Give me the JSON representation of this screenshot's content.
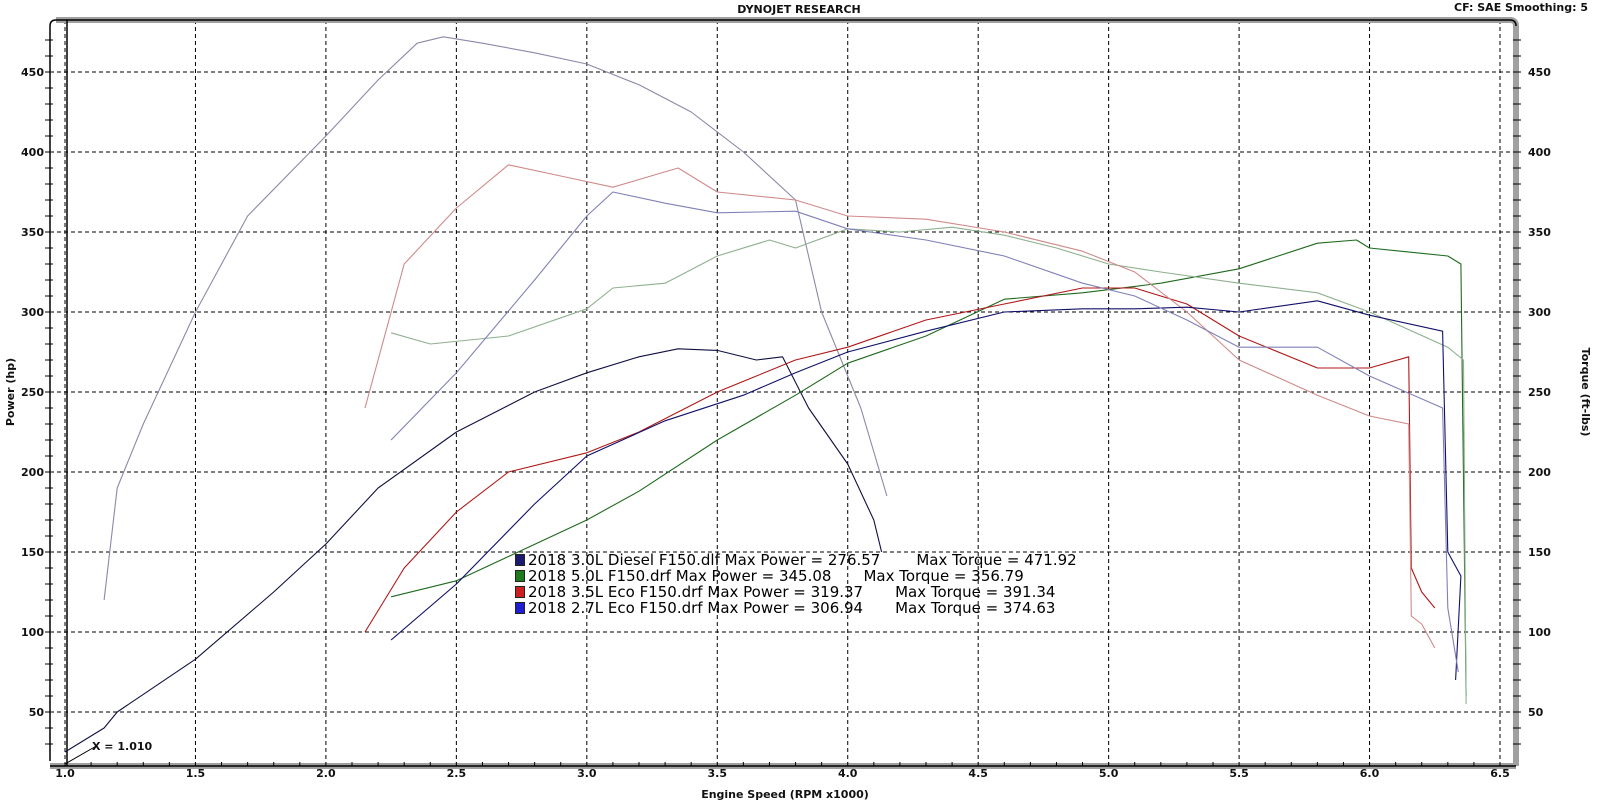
{
  "header": {
    "title": "DYNOJET RESEARCH",
    "settings": "CF: SAE  Smoothing: 5"
  },
  "cursor_label": "X = 1.010",
  "legend": [
    {
      "name": "2018 3.0L Diesel F150.dlf",
      "power_label": "Max Power = 276.57",
      "torque_label": "Max Torque = 471.92",
      "color": "#1a1a6e"
    },
    {
      "name": "2018 5.0L F150.drf",
      "power_label": "Max Power = 345.08",
      "torque_label": "Max Torque = 356.79",
      "color": "#1f7a1f"
    },
    {
      "name": "2018 3.5L Eco F150.drf",
      "power_label": "Max Power = 319.37",
      "torque_label": "Max Torque = 391.34",
      "color": "#cc1f1f"
    },
    {
      "name": "2018 2.7L Eco F150.drf",
      "power_label": "Max Power = 306.94",
      "torque_label": "Max Torque = 374.63",
      "color": "#1f1fd0"
    }
  ],
  "chart_data": {
    "type": "line",
    "title": "DYNOJET RESEARCH",
    "subtitle": "CF: SAE  Smoothing: 5",
    "xlabel": "Engine Speed (RPM x1000)",
    "ylabel": "Power (hp)",
    "y2label": "Torque (ft-lbs)",
    "xlim": [
      1.0,
      6.5
    ],
    "ylim": [
      25,
      475
    ],
    "y2lim": [
      25,
      475
    ],
    "x_ticks": [
      "1.0",
      "1.5",
      "2.0",
      "2.5",
      "3.0",
      "3.5",
      "4.0",
      "4.5",
      "5.0",
      "5.5",
      "6.0",
      "6.5"
    ],
    "y_ticks": [
      "50",
      "100",
      "150",
      "200",
      "250",
      "300",
      "350",
      "400",
      "450"
    ],
    "y2_ticks": [
      "50",
      "100",
      "150",
      "200",
      "250",
      "300",
      "350",
      "400",
      "450"
    ],
    "grid": true,
    "legend_position": "lower-center inside plot",
    "series": [
      {
        "name": "2018 3.0L Diesel F150.dlf Power (hp)",
        "axis": "power",
        "color": "#101040",
        "x": [
          1.0,
          1.15,
          1.2,
          1.5,
          1.8,
          2.0,
          2.2,
          2.5,
          2.8,
          3.0,
          3.2,
          3.35,
          3.5,
          3.65,
          3.75,
          3.85,
          4.0,
          4.1,
          4.13
        ],
        "y": [
          25,
          40,
          50,
          83,
          125,
          155,
          190,
          225,
          250,
          262,
          272,
          277,
          276,
          270,
          272,
          240,
          205,
          170,
          150
        ],
        "max": 276.57
      },
      {
        "name": "2018 3.0L Diesel F150.dlf Torque (ft-lbs)",
        "axis": "torque",
        "color": "#8a8aa8",
        "x": [
          1.15,
          1.2,
          1.3,
          1.5,
          1.7,
          2.0,
          2.2,
          2.35,
          2.45,
          2.6,
          2.8,
          3.0,
          3.2,
          3.4,
          3.6,
          3.8,
          3.9,
          4.05,
          4.15
        ],
        "y": [
          120,
          190,
          230,
          300,
          360,
          410,
          445,
          468,
          472,
          468,
          462,
          455,
          442,
          425,
          400,
          370,
          300,
          240,
          185
        ],
        "max": 471.92
      },
      {
        "name": "2018 5.0L F150.drf Power (hp)",
        "axis": "power",
        "color": "#1f6a1f",
        "x": [
          2.25,
          2.5,
          3.0,
          3.2,
          3.5,
          3.8,
          4.0,
          4.3,
          4.6,
          4.9,
          5.2,
          5.5,
          5.8,
          5.95,
          6.0,
          6.3,
          6.35,
          6.37
        ],
        "y": [
          122,
          132,
          170,
          188,
          220,
          248,
          268,
          285,
          308,
          312,
          318,
          327,
          343,
          345,
          340,
          335,
          330,
          60
        ],
        "max": 345.08
      },
      {
        "name": "2018 5.0L F150.drf Torque (ft-lbs)",
        "axis": "torque",
        "color": "#8fb08f",
        "x": [
          2.25,
          2.4,
          2.7,
          3.0,
          3.1,
          3.3,
          3.5,
          3.7,
          3.8,
          4.0,
          4.2,
          4.4,
          4.6,
          4.8,
          5.0,
          5.2,
          5.5,
          5.8,
          6.0,
          6.3,
          6.36,
          6.37
        ],
        "y": [
          287,
          280,
          285,
          302,
          315,
          318,
          335,
          345,
          340,
          352,
          350,
          353,
          348,
          340,
          330,
          325,
          318,
          312,
          300,
          278,
          270,
          55
        ],
        "max": 356.79
      },
      {
        "name": "2018 3.5L Eco F150.drf Power (hp)",
        "axis": "power",
        "color": "#b01818",
        "x": [
          2.15,
          2.3,
          2.5,
          2.7,
          3.0,
          3.2,
          3.5,
          3.8,
          4.0,
          4.3,
          4.6,
          4.9,
          5.1,
          5.3,
          5.5,
          5.8,
          6.0,
          6.15,
          6.16,
          6.2,
          6.25
        ],
        "y": [
          100,
          140,
          175,
          200,
          212,
          225,
          250,
          270,
          278,
          295,
          305,
          315,
          315,
          305,
          285,
          265,
          265,
          272,
          140,
          125,
          115
        ],
        "max": 319.37
      },
      {
        "name": "2018 3.5L Eco F150.drf Torque (ft-lbs)",
        "axis": "torque",
        "color": "#d08a8a",
        "x": [
          2.15,
          2.3,
          2.5,
          2.7,
          2.9,
          3.1,
          3.35,
          3.5,
          3.8,
          4.0,
          4.3,
          4.6,
          4.9,
          5.1,
          5.3,
          5.5,
          5.8,
          6.0,
          6.15,
          6.16,
          6.2,
          6.25
        ],
        "y": [
          240,
          330,
          365,
          392,
          385,
          378,
          390,
          375,
          370,
          360,
          358,
          350,
          338,
          325,
          300,
          270,
          248,
          235,
          230,
          110,
          105,
          90
        ],
        "max": 391.34
      },
      {
        "name": "2018 2.7L Eco F150.drf Power (hp)",
        "axis": "power",
        "color": "#10106a",
        "x": [
          2.25,
          2.5,
          2.8,
          3.0,
          3.3,
          3.6,
          3.8,
          4.0,
          4.3,
          4.6,
          4.9,
          5.1,
          5.3,
          5.5,
          5.8,
          6.0,
          6.28,
          6.3,
          6.35,
          6.33
        ],
        "y": [
          95,
          130,
          180,
          210,
          232,
          248,
          262,
          275,
          288,
          300,
          302,
          302,
          303,
          300,
          307,
          298,
          288,
          150,
          135,
          70
        ],
        "max": 306.94
      },
      {
        "name": "2018 2.7L Eco F150.drf Torque (ft-lbs)",
        "axis": "torque",
        "color": "#8080b8",
        "x": [
          2.25,
          2.5,
          2.8,
          3.0,
          3.1,
          3.3,
          3.5,
          3.8,
          4.0,
          4.3,
          4.6,
          4.9,
          5.1,
          5.3,
          5.5,
          5.8,
          6.0,
          6.28,
          6.3,
          6.34
        ],
        "y": [
          220,
          262,
          320,
          360,
          375,
          368,
          362,
          363,
          352,
          345,
          335,
          318,
          310,
          295,
          278,
          278,
          260,
          240,
          115,
          75
        ],
        "max": 374.63
      }
    ]
  }
}
